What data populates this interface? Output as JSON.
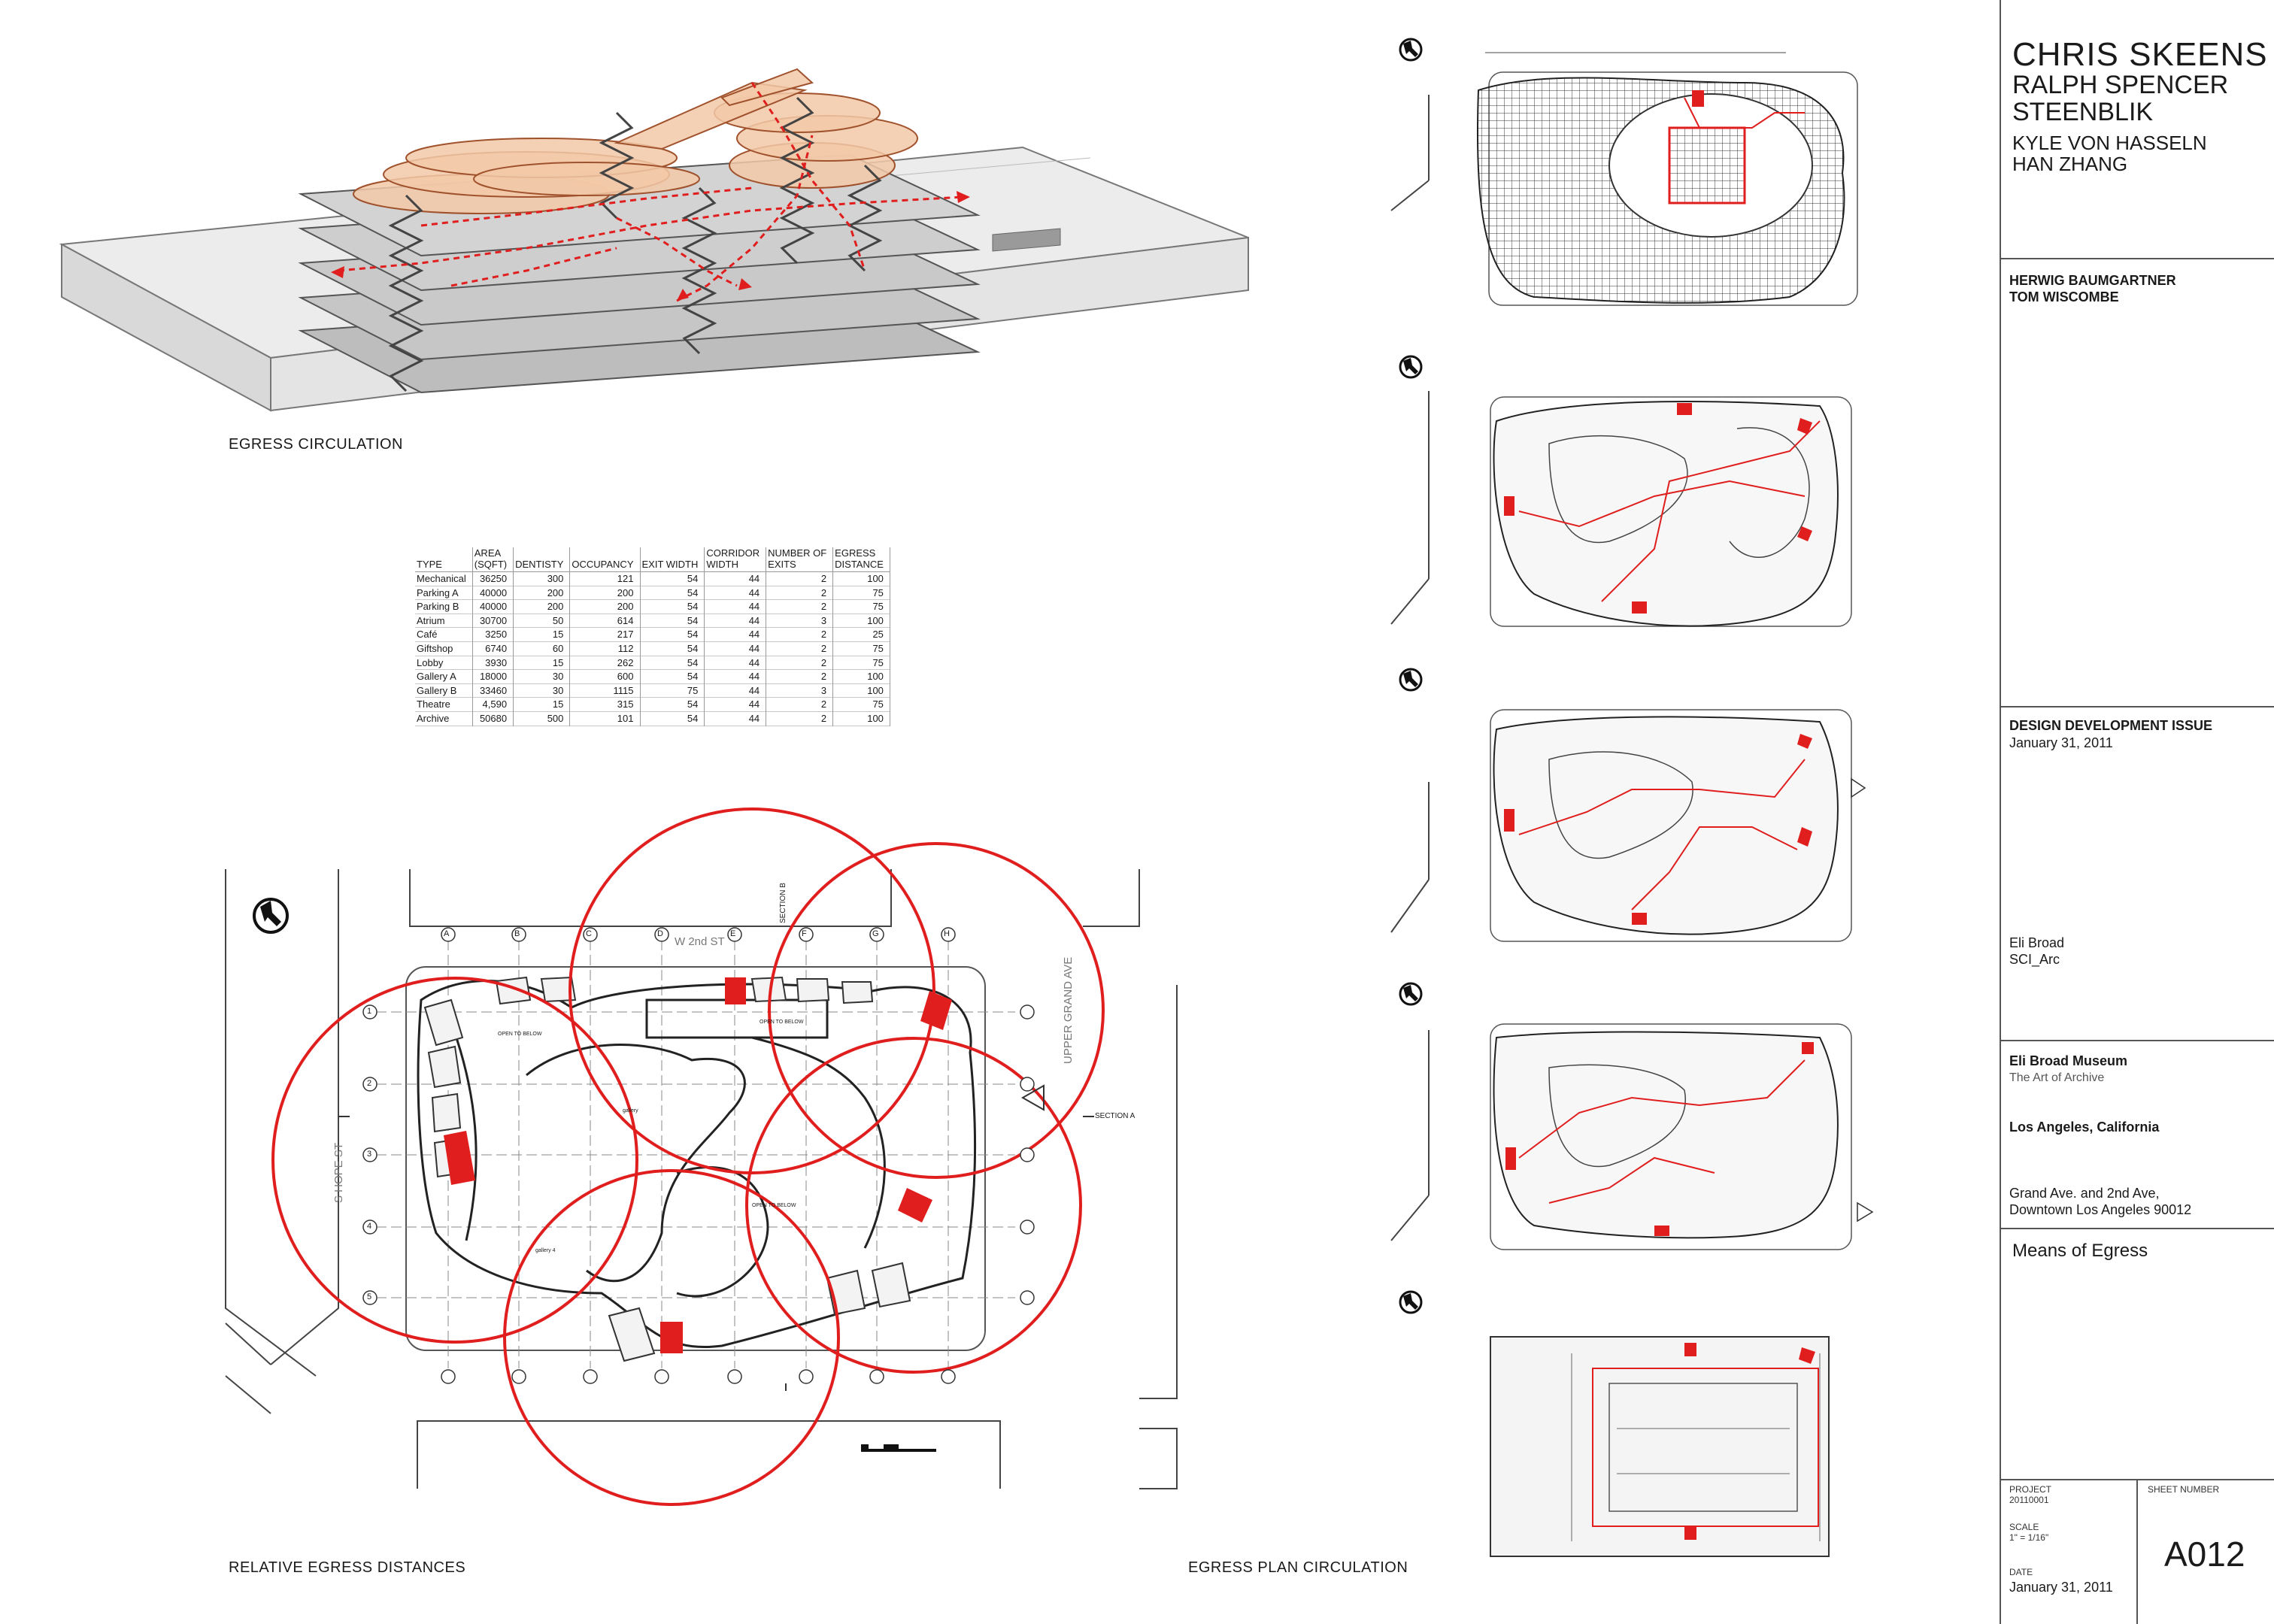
{
  "labels": {
    "egress_circulation": "EGRESS CIRCULATION",
    "relative_egress": "RELATIVE EGRESS DISTANCES",
    "egress_plan": "EGRESS PLAN CIRCULATION"
  },
  "plan_labels": {
    "w2nd": "W 2nd ST",
    "hope": "S HOPE ST",
    "grand": "UPPER GRAND AVE",
    "section_a": "SECTION A",
    "section_b": "SECTION B",
    "open_below_1": "OPEN TO BELOW",
    "open_below_2": "OPEN TO BELOW",
    "open_below_3": "OPEN TO BELOW",
    "gallery": "gallery",
    "gallery4": "gallery 4",
    "grid_cols": [
      "A",
      "B",
      "C",
      "D",
      "E",
      "F",
      "G",
      "H"
    ],
    "grid_rows": [
      "1",
      "2",
      "3",
      "4",
      "5"
    ]
  },
  "table": {
    "headers": [
      "TYPE",
      "AREA\n(SQFT)",
      "DENTISTY",
      "OCCUPANCY",
      "EXIT WIDTH",
      "CORRIDOR\nWIDTH",
      "NUMBER OF\nEXITS",
      "EGRESS\nDISTANCE"
    ],
    "rows": [
      [
        "Mechanical",
        "36250",
        "300",
        "121",
        "54",
        "44",
        "2",
        "100"
      ],
      [
        "Parking A",
        "40000",
        "200",
        "200",
        "54",
        "44",
        "2",
        "75"
      ],
      [
        "Parking B",
        "40000",
        "200",
        "200",
        "54",
        "44",
        "2",
        "75"
      ],
      [
        "Atrium",
        "30700",
        "50",
        "614",
        "54",
        "44",
        "3",
        "100"
      ],
      [
        "Café",
        "3250",
        "15",
        "217",
        "54",
        "44",
        "2",
        "25"
      ],
      [
        "Giftshop",
        "6740",
        "60",
        "112",
        "54",
        "44",
        "2",
        "75"
      ],
      [
        "Lobby",
        "3930",
        "15",
        "262",
        "54",
        "44",
        "2",
        "75"
      ],
      [
        "Gallery A",
        "18000",
        "30",
        "600",
        "54",
        "44",
        "2",
        "100"
      ],
      [
        "Gallery B",
        "33460",
        "30",
        "1115",
        "75",
        "44",
        "3",
        "100"
      ],
      [
        "Theatre",
        "4,590",
        "15",
        "315",
        "54",
        "44",
        "2",
        "75"
      ],
      [
        "Archive",
        "50680",
        "500",
        "101",
        "54",
        "44",
        "2",
        "100"
      ]
    ]
  },
  "title_block": {
    "names": [
      "CHRIS  SKEENS",
      "RALPH SPENCER",
      "STEENBLIK",
      "KYLE VON HASSELN",
      "HAN ZHANG"
    ],
    "advisors": [
      "HERWIG BAUMGARTNER",
      "TOM WISCOMBE"
    ],
    "issue": "DESIGN DEVELOPMENT ISSUE",
    "issue_date": "January 31, 2011",
    "client": [
      "Eli Broad",
      "SCI_Arc"
    ],
    "project_name": "Eli Broad Museum",
    "project_sub": "The Art of Archive",
    "city": "Los Angeles, California",
    "address": [
      "Grand Ave. and 2nd Ave,",
      "Downtown Los Angeles 90012"
    ],
    "sheet_title": "Means of Egress",
    "project_label": "PROJECT",
    "project_no": "20110001",
    "scale_label": "SCALE",
    "scale": "1\" = 1/16\"",
    "date_label": "DATE",
    "date": "January 31, 2011",
    "sheet_number_label": "SHEET NUMBER",
    "sheet_number": "A012"
  },
  "colors": {
    "accent_red": "#e01e1e",
    "orange": "#f2c9a8",
    "slab_grey": "#bdbdbd"
  }
}
